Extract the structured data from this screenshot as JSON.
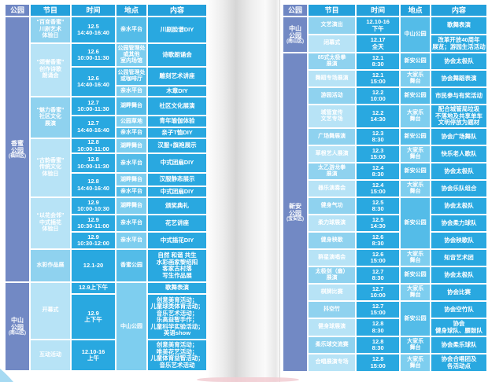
{
  "colors": {
    "park_column": "#7289c4",
    "header_blue": "#23a0db",
    "cell_blue": "#29a8e0",
    "program_dark": "#8fd2ef",
    "program_light": "#b7e3f6",
    "location_dark": "#54bce8",
    "location_light": "#7eceef",
    "corner_accent": "#a6daf2",
    "pink_accent": "#f2ccd2"
  },
  "tables": [
    {
      "name": "left-table",
      "columns": [
        "公园",
        "节目",
        "时间",
        "地点",
        "内容"
      ],
      "rows": [
        {
          "h": 32,
          "cells": [
            {
              "type": "park",
              "rs": 15,
              "t": "香蜜\n公园",
              "sub": "(福田区)"
            },
            {
              "type": "prog",
              "t": "“百变香蜜”\n川剧艺术\n体验日"
            },
            {
              "type": "time",
              "t": "12.5\n14:40-16:40"
            },
            {
              "type": "loc",
              "t": "亲水平台"
            },
            {
              "type": "cont",
              "t": "川剧脸谱DIY"
            }
          ]
        },
        {
          "h": 28,
          "cells": [
            {
              "type": "prog",
              "rs": 3,
              "t": "“颂誉香蜜”\n创作诗歌\n朗诵会"
            },
            {
              "type": "time",
              "t": "12.6\n10:00-11:30"
            },
            {
              "type": "loc",
              "t": "公园管理处\n或其他\n室内场馆"
            },
            {
              "type": "cont",
              "t": "诗歌朗诵会"
            }
          ]
        },
        {
          "h": 22,
          "cells": [
            {
              "type": "time",
              "rs": 2,
              "t": "12.6\n14:40-16:40"
            },
            {
              "type": "loc",
              "t": "公园管理处\n或咖啡厅"
            },
            {
              "type": "cont",
              "t": "雕刻艺术讲座"
            }
          ]
        },
        {
          "h": 12,
          "cells": [
            {
              "type": "loc",
              "t": "亲水平台"
            },
            {
              "type": "cont",
              "t": "木章DIY"
            }
          ]
        },
        {
          "h": 22,
          "cells": [
            {
              "type": "prog",
              "rs": 3,
              "t": "“魅力香蜜”\n社区文化\n展演"
            },
            {
              "type": "time",
              "t": "12.7\n10:00-11:30"
            },
            {
              "type": "loc",
              "t": "湖畔舞台"
            },
            {
              "type": "cont",
              "t": "社区文化展演"
            }
          ]
        },
        {
          "h": 13,
          "cells": [
            {
              "type": "time",
              "rs": 2,
              "t": "12.7\n14:40-16:40"
            },
            {
              "type": "loc",
              "t": "公园草地"
            },
            {
              "type": "cont",
              "t": "青年瑜伽体验"
            }
          ]
        },
        {
          "h": 12,
          "cells": [
            {
              "type": "loc",
              "t": "亲水平台"
            },
            {
              "type": "cont",
              "t": "亲子T恤DIY"
            }
          ]
        },
        {
          "h": 16,
          "cells": [
            {
              "type": "prog",
              "rs": 4,
              "t": "“古韵香蜜”\n传统文化\n体验日"
            },
            {
              "type": "time",
              "t": "12.8\n10:00-11:00"
            },
            {
              "type": "loc",
              "t": "湖畔舞台"
            },
            {
              "type": "cont",
              "t": "汉服+旗袍展示"
            }
          ]
        },
        {
          "h": 23,
          "cells": [
            {
              "type": "time",
              "t": "12.8\n10:00-11:30"
            },
            {
              "type": "loc",
              "t": "亲水平台"
            },
            {
              "type": "cont",
              "t": "中式团扇DIY"
            }
          ]
        },
        {
          "h": 15,
          "cells": [
            {
              "type": "time",
              "rs": 2,
              "t": "12.8\n14:40-16:40"
            },
            {
              "type": "loc",
              "t": "湖畔舞台"
            },
            {
              "type": "cont",
              "t": "汉服静态展示"
            }
          ]
        },
        {
          "h": 12,
          "cells": [
            {
              "type": "loc",
              "t": "亲水平台"
            },
            {
              "type": "cont",
              "t": "中式团扇DIY"
            }
          ]
        },
        {
          "h": 20,
          "cells": [
            {
              "type": "prog",
              "rs": 3,
              "t": "“以花会邻”\n中式插花\n体验日"
            },
            {
              "type": "time",
              "t": "12.9\n10:00-10:30"
            },
            {
              "type": "loc",
              "t": "湖畔舞台"
            },
            {
              "type": "cont",
              "t": "颁奖典礼"
            }
          ]
        },
        {
          "h": 20,
          "cells": [
            {
              "type": "time",
              "t": "12.9\n10:30-11:00"
            },
            {
              "type": "loc",
              "t": "亲水平台"
            },
            {
              "type": "cont",
              "t": "花艺讲座"
            }
          ]
        },
        {
          "h": 20,
          "cells": [
            {
              "type": "time",
              "t": "12.9\n10:30-12:00"
            },
            {
              "type": "loc",
              "t": "亲水平台"
            },
            {
              "type": "cont",
              "t": "中式插花DIY"
            }
          ]
        },
        {
          "h": 40,
          "cells": [
            {
              "type": "prog",
              "t": "水彩作品展"
            },
            {
              "type": "time",
              "t": "12.1-20"
            },
            {
              "type": "loc",
              "t": "香蜜公园"
            },
            {
              "type": "cont",
              "t": "自然 和谐 共生\n水彩画家黎绍阳\n客家古村落\n写生作品展"
            }
          ]
        },
        {
          "h": 13,
          "cells": [
            {
              "type": "park",
              "rs": 3,
              "t": "中山\n公园",
              "sub": "(南山区)"
            },
            {
              "type": "prog",
              "rs": 2,
              "t": "开幕式"
            },
            {
              "type": "time",
              "t": "12.9上下午"
            },
            {
              "type": "loc",
              "rs": 3,
              "t": "中山公园"
            },
            {
              "type": "cont",
              "t": "歌舞表演"
            }
          ]
        },
        {
          "h": 56,
          "cells": [
            {
              "type": "time",
              "t": "12.9\n上下午"
            },
            {
              "type": "cont",
              "t": "创意美育活动；\n儿童球类体育活动；\n音乐艺术活动；\n乐高益智手作；\n儿童科学实验活动；\n英语show"
            }
          ]
        },
        {
          "h": 38,
          "cells": [
            {
              "type": "prog",
              "t": "互动活动"
            },
            {
              "type": "time",
              "t": "12.10-16\n上午"
            },
            {
              "type": "cont",
              "t": "创意美育活动；\n唯美花艺活动；\n儿童体育益智活动；\n音乐艺术活动"
            }
          ]
        }
      ]
    },
    {
      "name": "right-table",
      "columns": [
        "公园",
        "节目",
        "时间",
        "地点",
        "内容"
      ],
      "rows": [
        {
          "h": 21,
          "cells": [
            {
              "type": "park",
              "rs": 2,
              "t": "中山\n公园",
              "sub": "(南山区)"
            },
            {
              "type": "prog",
              "t": "文艺演出"
            },
            {
              "type": "time",
              "t": "12.10-16\n下午"
            },
            {
              "type": "loc",
              "rs": 2,
              "t": "中山公园"
            },
            {
              "type": "cont",
              "t": "歌舞表演"
            }
          ]
        },
        {
          "h": 21,
          "cells": [
            {
              "type": "prog",
              "t": "闭幕式"
            },
            {
              "type": "time",
              "t": "12.17\n全天"
            },
            {
              "type": "cont",
              "t": "改革开放40周年\n展览；游园生活活动"
            }
          ]
        },
        {
          "h": 20,
          "cells": [
            {
              "type": "park",
              "rs": 18,
              "t": "新安\n公园",
              "sub": "(宝安区)"
            },
            {
              "type": "prog",
              "t": "85式太极拳\n展演"
            },
            {
              "type": "time",
              "t": "12.1\n8:30"
            },
            {
              "type": "loc",
              "t": "新安公园"
            },
            {
              "type": "cont",
              "t": "协会太极队"
            }
          ]
        },
        {
          "h": 20,
          "cells": [
            {
              "type": "prog",
              "t": "舞蹈专场展演"
            },
            {
              "type": "time",
              "t": "12.1\n15:00"
            },
            {
              "type": "loc",
              "t": "大家乐\n舞台"
            },
            {
              "type": "cont",
              "t": "协会舞蹈表演"
            }
          ]
        },
        {
          "h": 20,
          "cells": [
            {
              "type": "prog",
              "t": "游园活动"
            },
            {
              "type": "time",
              "t": "12.2\n10:00"
            },
            {
              "type": "loc",
              "t": "新安公园"
            },
            {
              "type": "cont",
              "t": "市民参与有奖活动"
            }
          ]
        },
        {
          "h": 28,
          "cells": [
            {
              "type": "prog",
              "t": "城管宣传\n文艺专场"
            },
            {
              "type": "time",
              "t": "12.2\n14:30"
            },
            {
              "type": "loc",
              "t": "大家乐\n舞台"
            },
            {
              "type": "cont",
              "t": "配合城管局垃圾\n不落地及共享单车\n文明停放为题材"
            }
          ]
        },
        {
          "h": 20,
          "cells": [
            {
              "type": "prog",
              "t": "广场舞展演"
            },
            {
              "type": "time",
              "t": "12.3\n8:30"
            },
            {
              "type": "loc",
              "t": "新安公园"
            },
            {
              "type": "cont",
              "t": "协会广场舞队"
            }
          ]
        },
        {
          "h": 20,
          "cells": [
            {
              "type": "prog",
              "t": "草根艺人展演"
            },
            {
              "type": "time",
              "t": "12.3\n15:00"
            },
            {
              "type": "loc",
              "t": "大家乐\n舞台"
            },
            {
              "type": "cont",
              "t": "快乐老人歌队"
            }
          ]
        },
        {
          "h": 20,
          "cells": [
            {
              "type": "prog",
              "t": "太乙游龙拳\n展演"
            },
            {
              "type": "time",
              "t": "12.4\n8:30"
            },
            {
              "type": "loc",
              "t": "新安公园"
            },
            {
              "type": "cont",
              "t": "协会太极队"
            }
          ]
        },
        {
          "h": 20,
          "cells": [
            {
              "type": "prog",
              "t": "器乐演奏会"
            },
            {
              "type": "time",
              "t": "12.4\n15:00"
            },
            {
              "type": "loc",
              "t": "大家乐\n舞台"
            },
            {
              "type": "cont",
              "t": "协会乐队组合"
            }
          ]
        },
        {
          "h": 20,
          "cells": [
            {
              "type": "prog",
              "t": "健身气功"
            },
            {
              "type": "time",
              "t": "12.5\n8:30"
            },
            {
              "type": "loc",
              "rs": 3,
              "t": "新安公园"
            },
            {
              "type": "cont",
              "t": "协会太极队"
            }
          ]
        },
        {
          "h": 20,
          "cells": [
            {
              "type": "prog",
              "t": "柔力球展演"
            },
            {
              "type": "time",
              "t": "12.5\n14:30"
            },
            {
              "type": "cont",
              "t": "协会柔力球队"
            }
          ]
        },
        {
          "h": 20,
          "cells": [
            {
              "type": "prog",
              "t": "健身秧歌"
            },
            {
              "type": "time",
              "t": "12.6\n8:30"
            },
            {
              "type": "cont",
              "t": "协会秧歌队"
            }
          ]
        },
        {
          "h": 20,
          "cells": [
            {
              "type": "prog",
              "t": "群星演唱会"
            },
            {
              "type": "time",
              "t": "12.6\n15:00"
            },
            {
              "type": "loc",
              "t": "大家乐\n舞台"
            },
            {
              "type": "cont",
              "t": "知音艺术团"
            }
          ]
        },
        {
          "h": 20,
          "cells": [
            {
              "type": "prog",
              "t": "太极剑（扇）\n展演"
            },
            {
              "type": "time",
              "t": "12.7\n8:30"
            },
            {
              "type": "loc",
              "t": "新安公园"
            },
            {
              "type": "cont",
              "t": "协会太极队"
            }
          ]
        },
        {
          "h": 20,
          "cells": [
            {
              "type": "prog",
              "t": "棋牌比赛"
            },
            {
              "type": "time",
              "t": "12.7\n10:00"
            },
            {
              "type": "loc",
              "t": "大家乐\n舞台"
            },
            {
              "type": "cont",
              "t": "协会比赛"
            }
          ]
        },
        {
          "h": 20,
          "cells": [
            {
              "type": "prog",
              "t": "抖空竹"
            },
            {
              "type": "time",
              "t": "12.7\n15:00"
            },
            {
              "type": "loc",
              "rs": 2,
              "t": "新安公园"
            },
            {
              "type": "cont",
              "t": "协会空竹队"
            }
          ]
        },
        {
          "h": 21,
          "cells": [
            {
              "type": "prog",
              "t": "健身球展演"
            },
            {
              "type": "time",
              "t": "12.8\n8:30"
            },
            {
              "type": "cont",
              "t": "协会\n健身球队、腰鼓队"
            }
          ]
        },
        {
          "h": 20,
          "cells": [
            {
              "type": "prog",
              "t": "柔乐球交流赛"
            },
            {
              "type": "time",
              "t": "12.8\n8:30"
            },
            {
              "type": "loc",
              "t": "大家乐\n舞台"
            },
            {
              "type": "cont",
              "t": "协会柔乐球队"
            }
          ]
        },
        {
          "h": 21,
          "cells": [
            {
              "type": "prog",
              "t": "合唱展演专场"
            },
            {
              "type": "time",
              "t": "12.8\n15:00"
            },
            {
              "type": "loc",
              "t": "大家乐\n舞台"
            },
            {
              "type": "cont",
              "t": "协会合唱团及\n各活动点"
            }
          ]
        }
      ]
    }
  ]
}
